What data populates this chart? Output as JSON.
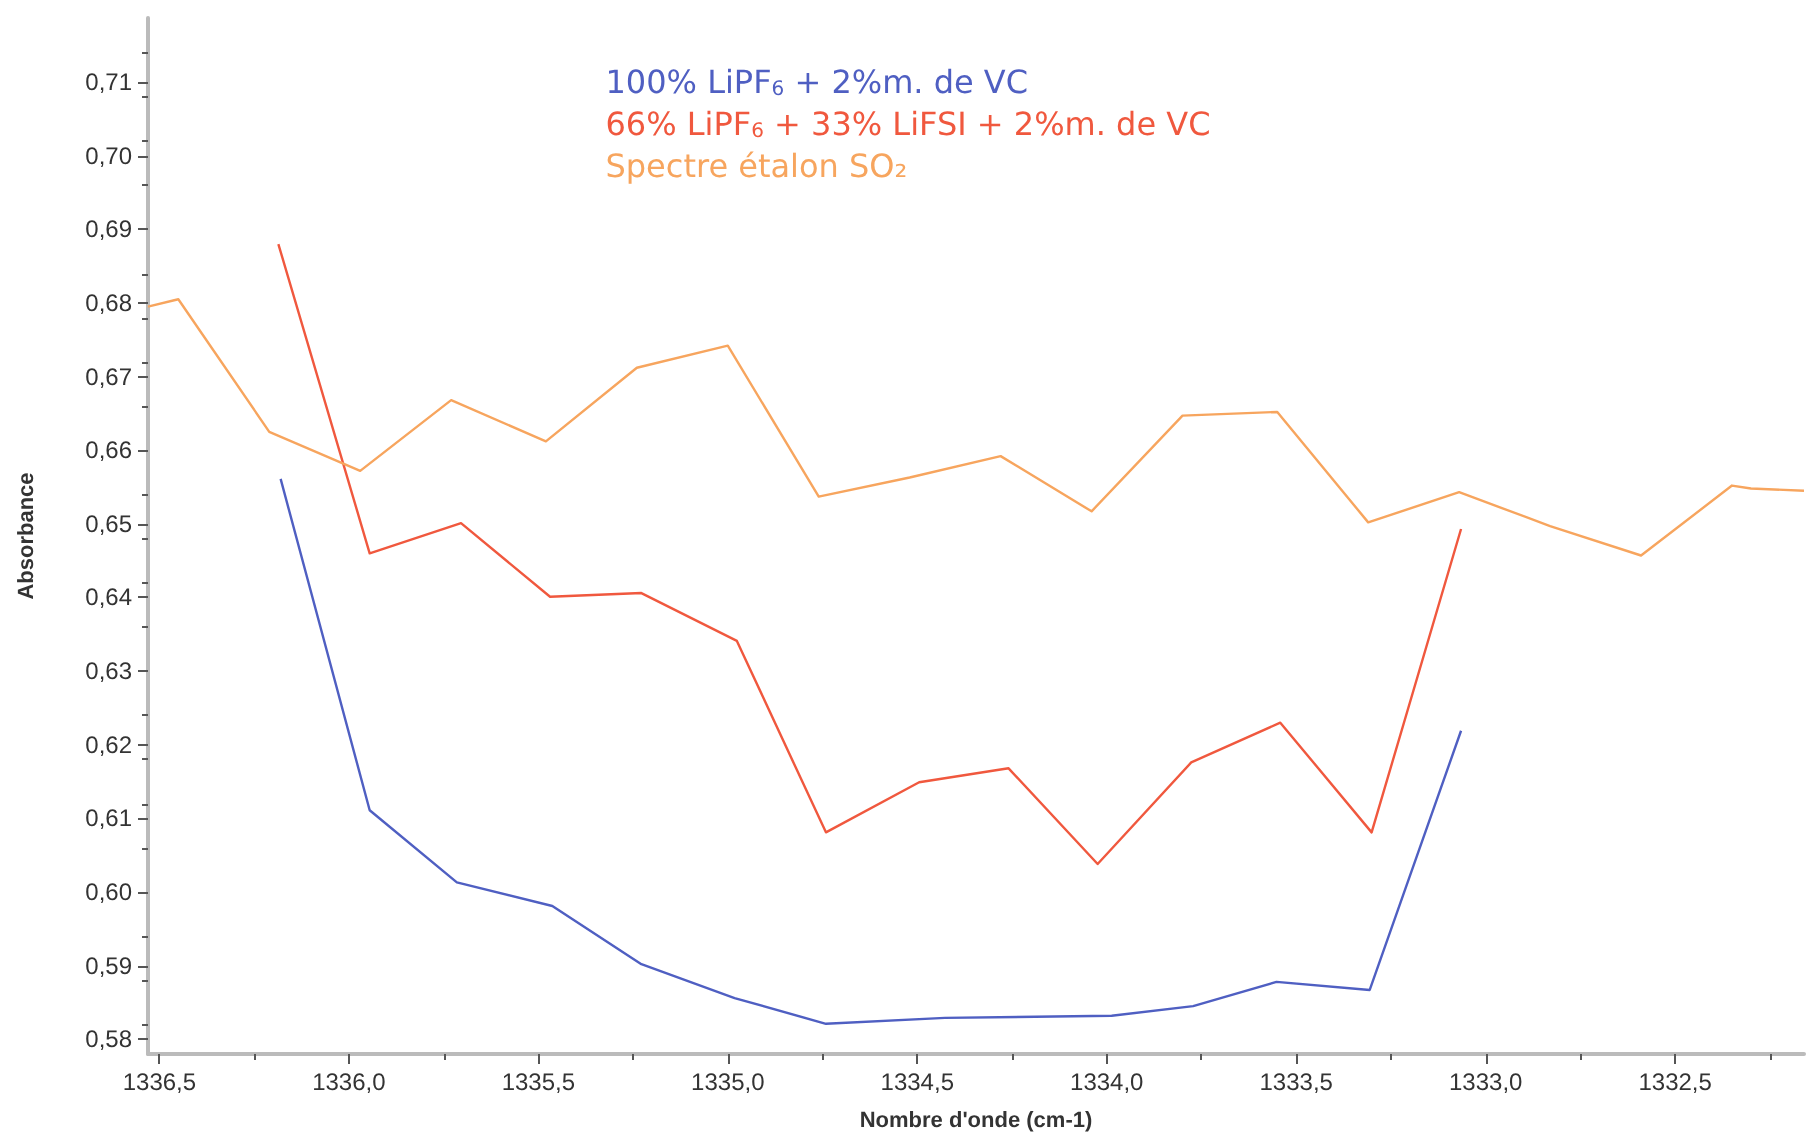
{
  "chart_data": {
    "type": "line",
    "xlabel": "Nombre d'onde (cm-1)",
    "ylabel": "Absorbance",
    "legend": "top",
    "marker": "none",
    "grid": false,
    "xlim": [
      1336.53,
      1332.16
    ],
    "ylim": [
      0.578,
      0.7187
    ],
    "xticks": [
      {
        "value": 1336.5,
        "label": "1336,5"
      },
      {
        "value": 1336.0,
        "label": "1336,0"
      },
      {
        "value": 1335.5,
        "label": "1335,5"
      },
      {
        "value": 1335.0,
        "label": "1335,0"
      },
      {
        "value": 1334.5,
        "label": "1334,5"
      },
      {
        "value": 1334.0,
        "label": "1334,0"
      },
      {
        "value": 1333.5,
        "label": "1333,5"
      },
      {
        "value": 1333.0,
        "label": "1333,0"
      },
      {
        "value": 1332.5,
        "label": "1332,5"
      }
    ],
    "yticks": [
      {
        "value": 0.58,
        "label": "0,58"
      },
      {
        "value": 0.59,
        "label": "0,59"
      },
      {
        "value": 0.6,
        "label": "0,60"
      },
      {
        "value": 0.61,
        "label": "0,61"
      },
      {
        "value": 0.62,
        "label": "0,62"
      },
      {
        "value": 0.63,
        "label": "0,63"
      },
      {
        "value": 0.64,
        "label": "0,64"
      },
      {
        "value": 0.65,
        "label": "0,65"
      },
      {
        "value": 0.66,
        "label": "0,66"
      },
      {
        "value": 0.67,
        "label": "0,67"
      },
      {
        "value": 0.68,
        "label": "0,68"
      },
      {
        "value": 0.69,
        "label": "0,69"
      },
      {
        "value": 0.7,
        "label": "0,70"
      },
      {
        "value": 0.71,
        "label": "0,71"
      }
    ],
    "series": [
      {
        "name": "100% LiPF$_{6}$ + 2%m. de VC",
        "color": "#4f5fc2",
        "x": [
          1336.18,
          1335.945,
          1335.715,
          1335.463,
          1335.228,
          1334.982,
          1334.741,
          1334.427,
          1333.987,
          1333.772,
          1333.552,
          1333.306,
          1333.065
        ],
        "values": [
          0.6561,
          0.6111,
          0.6013,
          0.5981,
          0.5902,
          0.5856,
          0.5821,
          0.5829,
          0.5832,
          0.5845,
          0.5878,
          0.5867,
          0.6219
        ]
      },
      {
        "name": "66% LiPF$_{6}$ + 33% LiFSI + 2%m. de VC",
        "color": "#f0583e",
        "x": [
          1336.186,
          1335.945,
          1335.704,
          1335.469,
          1335.228,
          1334.976,
          1334.741,
          1334.495,
          1334.259,
          1334.024,
          1333.777,
          1333.542,
          1333.301,
          1333.065
        ],
        "values": [
          0.688,
          0.646,
          0.6501,
          0.6401,
          0.6406,
          0.6341,
          0.6081,
          0.6149,
          0.6168,
          0.6038,
          0.6176,
          0.623,
          0.6081,
          0.6493
        ]
      },
      {
        "name": "Spectre étalon SO₂",
        "color": "#f7a55e",
        "x": [
          1336.53,
          1336.45,
          1336.21,
          1335.97,
          1335.73,
          1335.48,
          1335.24,
          1335.0,
          1334.76,
          1334.52,
          1334.28,
          1334.04,
          1333.8,
          1333.55,
          1333.31,
          1333.07,
          1332.83,
          1332.59,
          1332.35,
          1332.3,
          1332.16
        ],
        "values": [
          0.6795,
          0.6805,
          0.6625,
          0.6572,
          0.6668,
          0.6612,
          0.6712,
          0.6742,
          0.6537,
          0.6563,
          0.6592,
          0.6517,
          0.6647,
          0.6652,
          0.6502,
          0.6543,
          0.6497,
          0.6457,
          0.6552,
          0.6548,
          0.6545
        ]
      }
    ]
  }
}
